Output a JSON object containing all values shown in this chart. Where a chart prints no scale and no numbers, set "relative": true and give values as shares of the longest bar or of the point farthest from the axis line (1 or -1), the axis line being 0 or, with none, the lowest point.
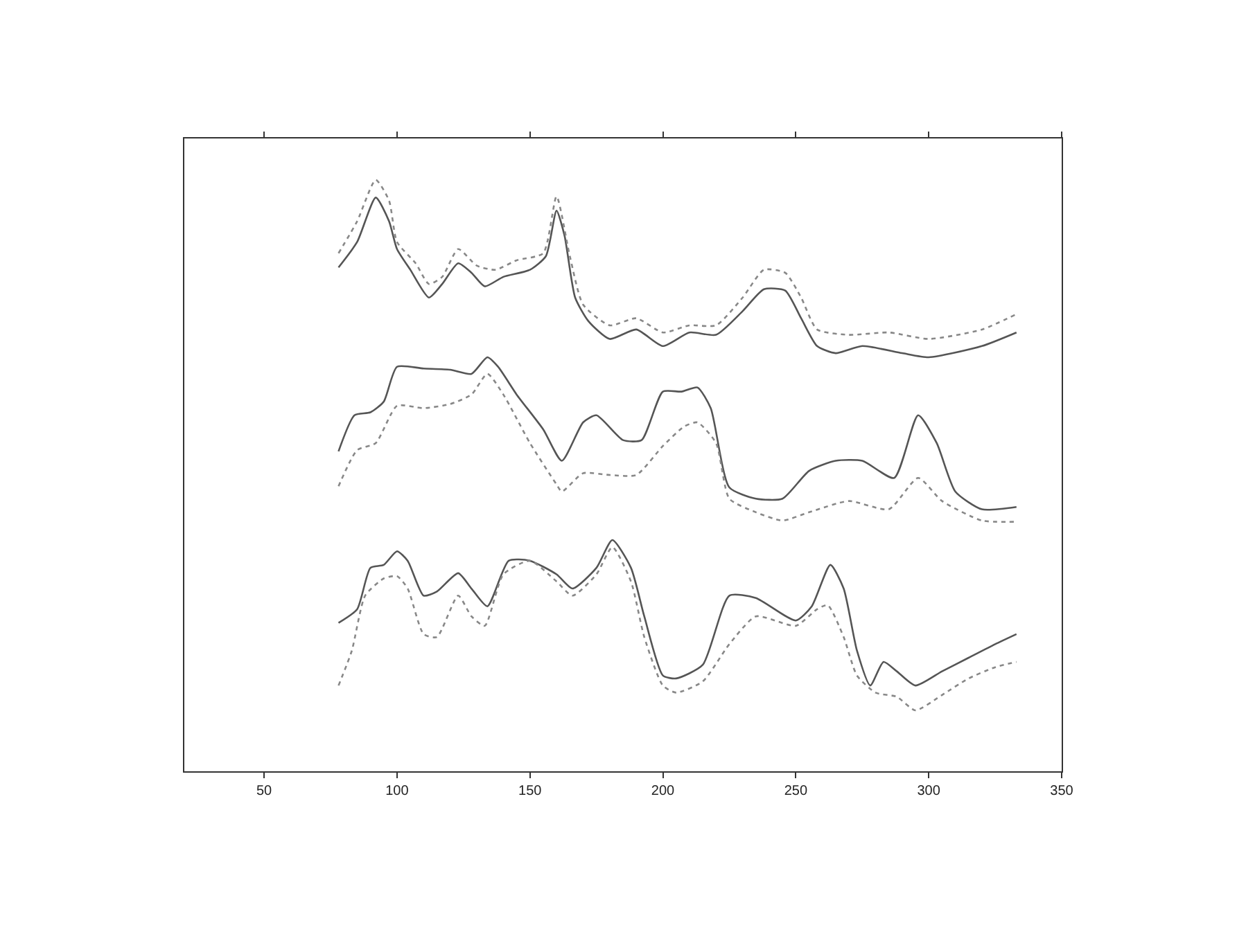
{
  "chart_data": {
    "type": "line",
    "relative": true,
    "xlim": [
      20,
      350
    ],
    "xticks": [
      50,
      100,
      150,
      200,
      250,
      300,
      350
    ],
    "tick_labels": "x",
    "series": [
      {
        "color": "#555555",
        "line_style": "solid",
        "x": [
          78,
          85,
          92,
          97,
          100,
          105,
          112,
          117,
          123,
          128,
          133,
          140,
          150,
          156,
          160,
          163,
          167,
          172,
          180,
          190,
          200,
          210,
          220,
          230,
          238,
          246,
          252,
          258,
          265,
          275,
          290,
          300,
          320,
          333
        ],
        "values": [
          0.852,
          0.895,
          0.97,
          0.93,
          0.883,
          0.848,
          0.801,
          0.824,
          0.859,
          0.843,
          0.82,
          0.836,
          0.848,
          0.871,
          0.948,
          0.906,
          0.801,
          0.761,
          0.731,
          0.747,
          0.719,
          0.742,
          0.738,
          0.778,
          0.815,
          0.813,
          0.766,
          0.719,
          0.707,
          0.719,
          0.707,
          0.7,
          0.719,
          0.742
        ]
      },
      {
        "color": "#888888",
        "line_style": "dotted",
        "x": [
          78,
          85,
          92,
          97,
          100,
          107,
          112,
          117,
          123,
          130,
          137,
          145,
          155,
          160,
          165,
          170,
          180,
          190,
          200,
          210,
          220,
          230,
          238,
          246,
          252,
          258,
          270,
          285,
          300,
          320,
          333
        ],
        "values": [
          0.876,
          0.93,
          1.0,
          0.965,
          0.895,
          0.859,
          0.824,
          0.836,
          0.883,
          0.855,
          0.848,
          0.864,
          0.876,
          0.972,
          0.871,
          0.789,
          0.754,
          0.766,
          0.742,
          0.754,
          0.754,
          0.801,
          0.848,
          0.843,
          0.801,
          0.747,
          0.738,
          0.742,
          0.731,
          0.747,
          0.773
        ]
      },
      {
        "color": "#555555",
        "line_style": "solid",
        "x": [
          78,
          84,
          90,
          95,
          100,
          110,
          120,
          128,
          134,
          138,
          145,
          155,
          162,
          170,
          175,
          185,
          192,
          200,
          207,
          213,
          218,
          225,
          235,
          245,
          255,
          265,
          275,
          287,
          296,
          303,
          310,
          320,
          333
        ],
        "values": [
          0.541,
          0.602,
          0.607,
          0.625,
          0.684,
          0.681,
          0.679,
          0.672,
          0.7,
          0.684,
          0.637,
          0.578,
          0.525,
          0.59,
          0.602,
          0.56,
          0.56,
          0.642,
          0.642,
          0.649,
          0.614,
          0.48,
          0.461,
          0.461,
          0.508,
          0.525,
          0.525,
          0.496,
          0.602,
          0.555,
          0.473,
          0.443,
          0.447
        ]
      },
      {
        "color": "#888888",
        "line_style": "dotted",
        "x": [
          78,
          85,
          92,
          100,
          110,
          120,
          128,
          134,
          140,
          150,
          160,
          162,
          170,
          180,
          190,
          200,
          208,
          213,
          220,
          225,
          235,
          245,
          255,
          270,
          285,
          296,
          305,
          320,
          333
        ],
        "values": [
          0.482,
          0.543,
          0.555,
          0.618,
          0.614,
          0.621,
          0.637,
          0.672,
          0.637,
          0.555,
          0.485,
          0.473,
          0.504,
          0.501,
          0.501,
          0.55,
          0.583,
          0.59,
          0.555,
          0.461,
          0.438,
          0.424,
          0.438,
          0.457,
          0.443,
          0.496,
          0.457,
          0.424,
          0.422
        ]
      },
      {
        "color": "#555555",
        "line_style": "solid",
        "x": [
          78,
          85,
          90,
          95,
          100,
          104,
          110,
          115,
          123,
          128,
          134,
          142,
          150,
          160,
          166,
          175,
          181,
          188,
          193,
          200,
          205,
          215,
          225,
          235,
          250,
          256,
          263,
          268,
          273,
          278,
          283,
          288,
          295,
          305,
          315,
          325,
          333
        ],
        "values": [
          0.251,
          0.274,
          0.344,
          0.349,
          0.372,
          0.356,
          0.297,
          0.304,
          0.335,
          0.309,
          0.279,
          0.356,
          0.356,
          0.333,
          0.309,
          0.344,
          0.391,
          0.344,
          0.262,
          0.162,
          0.157,
          0.18,
          0.297,
          0.293,
          0.255,
          0.279,
          0.349,
          0.309,
          0.204,
          0.145,
          0.185,
          0.169,
          0.145,
          0.169,
          0.192,
          0.215,
          0.232
        ]
      },
      {
        "color": "#888888",
        "line_style": "dotted",
        "x": [
          78,
          83,
          88,
          95,
          100,
          104,
          110,
          115,
          123,
          128,
          133,
          140,
          150,
          160,
          166,
          175,
          181,
          188,
          193,
          200,
          205,
          215,
          225,
          235,
          250,
          258,
          262,
          268,
          273,
          280,
          288,
          295,
          305,
          315,
          325,
          333
        ],
        "values": [
          0.145,
          0.204,
          0.297,
          0.326,
          0.33,
          0.309,
          0.232,
          0.227,
          0.297,
          0.262,
          0.246,
          0.333,
          0.356,
          0.321,
          0.297,
          0.333,
          0.379,
          0.321,
          0.227,
          0.145,
          0.133,
          0.152,
          0.215,
          0.262,
          0.246,
          0.274,
          0.281,
          0.227,
          0.162,
          0.133,
          0.126,
          0.103,
          0.129,
          0.157,
          0.176,
          0.185
        ]
      }
    ]
  }
}
